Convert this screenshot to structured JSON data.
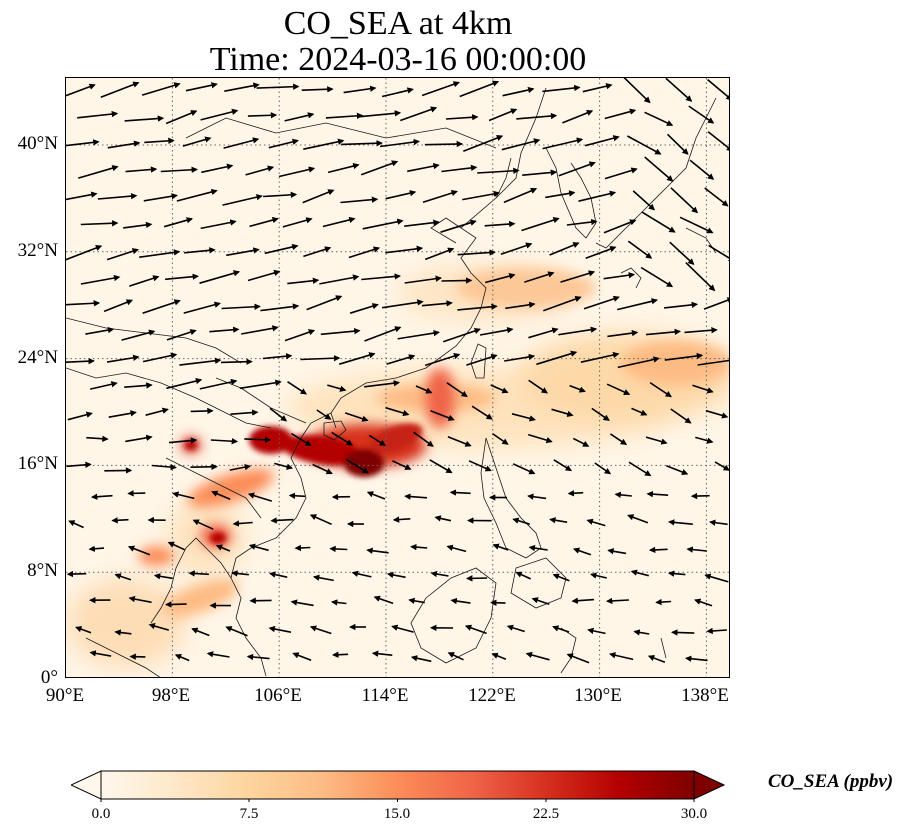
{
  "title_line1": "CO_SEA at 4km",
  "title_line2": "Time: 2024-03-16 00:00:00",
  "lat_ticks": [
    "0°",
    "8°N",
    "16°N",
    "24°N",
    "32°N",
    "40°N"
  ],
  "lon_ticks": [
    "90°E",
    "98°E",
    "106°E",
    "114°E",
    "122°E",
    "130°E",
    "138°E"
  ],
  "colorbar": {
    "label": "CO_SEA (ppbv)",
    "ticks": [
      "0.0",
      "7.5",
      "15.0",
      "22.5",
      "30.0"
    ],
    "min": 0,
    "max": 30,
    "colormap": "OrRd",
    "extend": "both",
    "colors": [
      "#fff7ec",
      "#fee8c8",
      "#fdd49e",
      "#fdbb84",
      "#fc8d59",
      "#ef6548",
      "#d7301f",
      "#b30000",
      "#7f0000"
    ]
  },
  "map": {
    "lon_range": [
      90,
      140
    ],
    "lat_range": [
      0,
      45
    ],
    "gridlines": "dotted",
    "vectors": "black wind arrows, predominantly westerly north of 20°N and north-easterly south of 20°N"
  }
}
